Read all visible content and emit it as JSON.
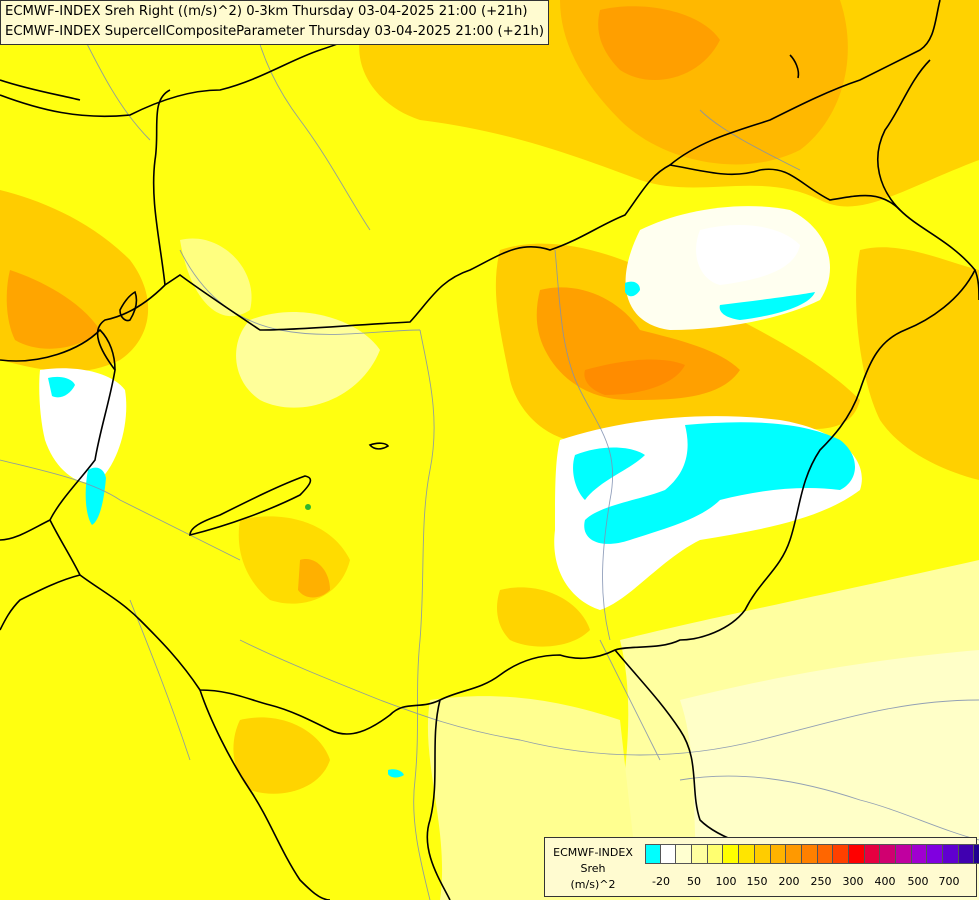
{
  "header": {
    "line1": "ECMWF-INDEX Sreh Right ((m/s)^2) 0-3km Thursday 03-04-2025 21:00 (+21h)",
    "line2": "ECMWF-INDEX SupercellCompositeParameter Thursday 03-04-2025 21:00 (+21h)"
  },
  "legend": {
    "title": "ECMWF-INDEX",
    "variable": "Sreh",
    "unit": "(m/s)^2",
    "colors": [
      "#00ffff",
      "#ffffff",
      "#ffffd0",
      "#ffffa0",
      "#ffff70",
      "#ffff00",
      "#ffe500",
      "#ffcc00",
      "#ffb300",
      "#ff9900",
      "#ff8000",
      "#ff6600",
      "#ff4000",
      "#ff0000",
      "#e60040",
      "#d00070",
      "#c000a0",
      "#a000d0",
      "#8000e0",
      "#6000d0",
      "#4000b0",
      "#200090",
      "#000080"
    ],
    "tick_labels": [
      "-20",
      "50",
      "100",
      "150",
      "200",
      "250",
      "300",
      "400",
      "500",
      "700"
    ]
  }
}
